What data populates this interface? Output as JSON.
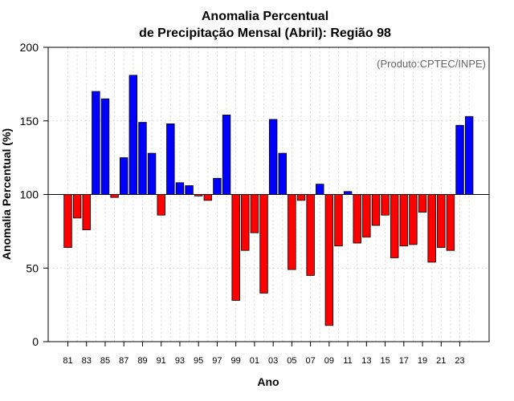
{
  "chart_data": {
    "type": "bar",
    "title_line1": "Anomalia Percentual",
    "title_line2": "de Precipitação Mensal (Abril): Região 98",
    "xlabel": "Ano",
    "ylabel": "Anomalia Percentual (%)",
    "credit": "(Produto:CPTEC/INPE)",
    "ylim": [
      0,
      200
    ],
    "yticks": [
      0,
      50,
      100,
      150,
      200
    ],
    "baseline": 100,
    "grid": true,
    "colors": {
      "above": "#0000ff",
      "below": "#ff0000",
      "outline": "#000000"
    },
    "categories": [
      "81",
      "82",
      "83",
      "84",
      "85",
      "86",
      "87",
      "88",
      "89",
      "90",
      "91",
      "92",
      "93",
      "94",
      "95",
      "96",
      "97",
      "98",
      "99",
      "00",
      "01",
      "02",
      "03",
      "04",
      "05",
      "06",
      "07",
      "08",
      "09",
      "10",
      "11",
      "12",
      "13",
      "14",
      "15",
      "16",
      "17",
      "18",
      "19",
      "20",
      "21",
      "22",
      "23",
      "24"
    ],
    "xtick_labels": [
      "81",
      "83",
      "85",
      "87",
      "89",
      "91",
      "93",
      "95",
      "97",
      "99",
      "01",
      "03",
      "05",
      "07",
      "09",
      "11",
      "13",
      "15",
      "17",
      "19",
      "21",
      "23"
    ],
    "values": [
      64,
      84,
      76,
      170,
      165,
      98,
      125,
      181,
      149,
      128,
      86,
      148,
      108,
      106,
      99,
      96,
      111,
      154,
      28,
      62,
      74,
      33,
      151,
      128,
      49,
      96,
      45,
      107,
      11,
      65,
      102,
      67,
      71,
      79,
      86,
      57,
      65,
      66,
      88,
      54,
      64,
      62,
      147,
      153
    ]
  }
}
